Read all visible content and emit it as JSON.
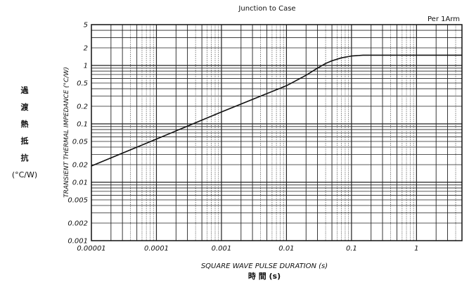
{
  "chart_data": {
    "type": "line",
    "title": "Junction to Case",
    "annotation": "Per 1Arm",
    "xlabel": "SQUARE WAVE PULSE DURATION (s)",
    "xlabel_jp": "時 間 (s)",
    "ylabel": "TRANSIENT THERMAL IMPEDANCE (°C/W)",
    "ylabel_jp_chars": [
      "過",
      "渡",
      "熱",
      "抵",
      "抗"
    ],
    "ylabel_jp_unit": "(°C/W)",
    "x_scale": "log",
    "y_scale": "log",
    "xlim": [
      1e-05,
      5
    ],
    "ylim": [
      0.001,
      5
    ],
    "grid": true,
    "x_ticks": [
      "0.00001",
      "0.0001",
      "0.001",
      "0.01",
      "0.1",
      "1"
    ],
    "y_ticks": [
      "0.001",
      "0.002",
      "0.005",
      "0.01",
      "0.02",
      "0.05",
      "0.1",
      "0.2",
      "0.5",
      "1",
      "2",
      "5"
    ],
    "series": [
      {
        "color": "#111111",
        "x": [
          1e-05,
          0.0001,
          0.001,
          0.01,
          0.02,
          0.03,
          0.04,
          0.05,
          0.07,
          0.1,
          0.15,
          0.2,
          0.5,
          1,
          5
        ],
        "y": [
          0.019,
          0.055,
          0.16,
          0.45,
          0.68,
          0.9,
          1.08,
          1.2,
          1.35,
          1.45,
          1.5,
          1.5,
          1.5,
          1.5,
          1.5
        ]
      }
    ]
  }
}
